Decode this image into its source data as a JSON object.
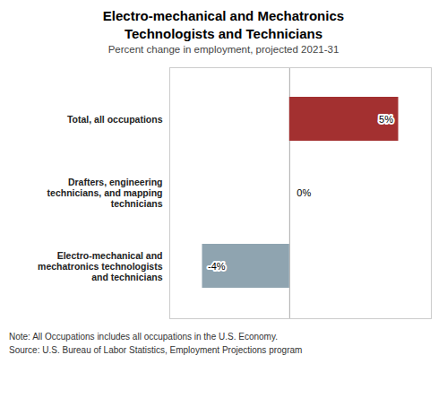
{
  "chart_data": {
    "type": "bar",
    "orientation": "horizontal",
    "title": "Electro-mechanical and Mechatronics\nTechnologists and Technicians",
    "subtitle": "Percent change in employment, projected 2021-31",
    "categories": [
      "Total, all occupations",
      "Drafters, engineering\ntechnicians, and mapping\ntechnicians",
      "Electro-mechanical and\nmechatronics technologists\nand technicians"
    ],
    "values": [
      5,
      0,
      -4
    ],
    "value_labels": [
      "5%",
      "0%",
      "-4%"
    ],
    "data_labels": true,
    "colors": [
      "#a33030",
      "#b0bec5",
      "#8fa4b0"
    ],
    "xlim": [
      -5.5,
      6.5
    ],
    "xticks": [
      0
    ],
    "grid": true,
    "tick_labels": "y",
    "notes": [
      "Note: All Occupations includes all occupations in the U.S. Economy.",
      "Source: U.S. Bureau of Labor Statistics, Employment Projections program"
    ]
  }
}
